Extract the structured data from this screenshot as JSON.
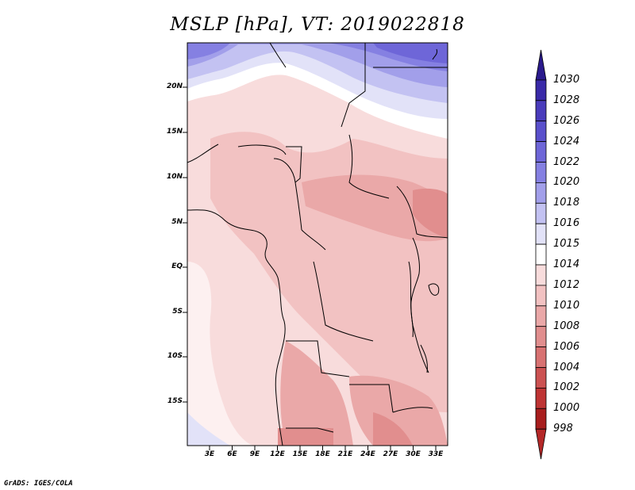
{
  "title": "MSLP [hPa], VT: 2019022818",
  "footer": "GrADS: IGES/COLA",
  "map": {
    "lat_labels": [
      "20N",
      "15N",
      "10N",
      "5N",
      "EQ",
      "5S",
      "10S",
      "15S"
    ],
    "lon_labels": [
      "3E",
      "6E",
      "9E",
      "12E",
      "15E",
      "18E",
      "21E",
      "24E",
      "27E",
      "30E",
      "33E"
    ]
  },
  "colorbar": {
    "levels": [
      "1030",
      "1028",
      "1026",
      "1024",
      "1022",
      "1020",
      "1018",
      "1016",
      "1015",
      "1014",
      "1012",
      "1010",
      "1008",
      "1006",
      "1004",
      "1002",
      "1000",
      "998"
    ],
    "colors": [
      "#2a1a8c",
      "#3a2aa8",
      "#4a3cbc",
      "#5a50cc",
      "#6e66d8",
      "#8580e2",
      "#a29fea",
      "#c3c2f2",
      "#e2e2f8",
      "#ffffff",
      "#f8dcdc",
      "#f2c2c2",
      "#eaa8a8",
      "#e18e8e",
      "#d87272",
      "#cc5252",
      "#bf3434",
      "#a81e1e",
      "#b42828"
    ]
  }
}
